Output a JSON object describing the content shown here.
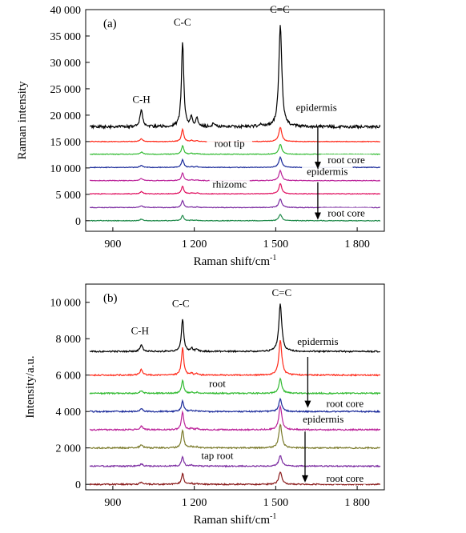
{
  "chart_data": [
    {
      "type": "line",
      "panel_label": "(a)",
      "xlabel": "Raman shift/cm",
      "xlabel_sup": "-1",
      "ylabel": "Raman intensity",
      "xlim": [
        800,
        1900
      ],
      "ylim": [
        -2000,
        40000
      ],
      "xticks": [
        900,
        1200,
        1500,
        1800
      ],
      "xtick_labels": [
        "900",
        "1 200",
        "1 500",
        "1 800"
      ],
      "yticks": [
        0,
        5000,
        10000,
        15000,
        20000,
        25000,
        30000,
        35000,
        40000
      ],
      "ytick_labels": [
        "0",
        "5 000",
        "10 000",
        "15 000",
        "20 000",
        "25 000",
        "30 000",
        "35 000",
        "40 000"
      ],
      "grid": false,
      "series": [
        {
          "color": "#000000",
          "baseline": 17800,
          "amps": {
            "ch": 3200,
            "cc": 16200,
            "cc2": 1800,
            "cc3": 1400,
            "cc4": 500,
            "c1445": 400,
            "cdc": 19400
          },
          "noise": 260
        },
        {
          "color": "#ff2a1a",
          "baseline": 15000,
          "amps": {
            "ch": 500,
            "cc": 2300,
            "cc2": 200,
            "cc3": 200,
            "cc4": 0,
            "c1445": 0,
            "cdc": 2700
          },
          "noise": 60
        },
        {
          "color": "#33bb33",
          "baseline": 12600,
          "amps": {
            "ch": 400,
            "cc": 1600,
            "cc2": 150,
            "cc3": 150,
            "cc4": 0,
            "c1445": 0,
            "cdc": 1900
          },
          "noise": 60
        },
        {
          "color": "#1a2a9a",
          "baseline": 10100,
          "amps": {
            "ch": 400,
            "cc": 1500,
            "cc2": 150,
            "cc3": 150,
            "cc4": 0,
            "c1445": 0,
            "cdc": 1900
          },
          "noise": 60
        },
        {
          "color": "#bb2299",
          "baseline": 7600,
          "amps": {
            "ch": 400,
            "cc": 1500,
            "cc2": 150,
            "cc3": 150,
            "cc4": 0,
            "c1445": 0,
            "cdc": 1900
          },
          "noise": 60
        },
        {
          "color": "#e01060",
          "baseline": 5100,
          "amps": {
            "ch": 400,
            "cc": 1500,
            "cc2": 150,
            "cc3": 150,
            "cc4": 0,
            "c1445": 0,
            "cdc": 1900
          },
          "noise": 60
        },
        {
          "color": "#7a2aa0",
          "baseline": 2500,
          "amps": {
            "ch": 350,
            "cc": 1300,
            "cc2": 120,
            "cc3": 120,
            "cc4": 0,
            "c1445": 0,
            "cdc": 1600
          },
          "noise": 60
        },
        {
          "color": "#1f8a4a",
          "baseline": 0,
          "amps": {
            "ch": 300,
            "cc": 1000,
            "cc2": 100,
            "cc3": 100,
            "cc4": 0,
            "c1445": 0,
            "cdc": 1200
          },
          "noise": 60
        }
      ],
      "annotations": [
        {
          "text": "C-H",
          "x": 1005,
          "y": 22300
        },
        {
          "text": "C-C",
          "x": 1156,
          "y": 37000
        },
        {
          "text": "C=C",
          "x": 1515,
          "y": 39400
        },
        {
          "text": "epidermis",
          "x": 1650,
          "y": 20800
        },
        {
          "text": "root tip",
          "x": 1330,
          "y": 14000
        },
        {
          "text": "root core",
          "x": 1760,
          "y": 10900
        },
        {
          "text": "epidermis",
          "x": 1690,
          "y": 8700
        },
        {
          "text": "rhizomc",
          "x": 1330,
          "y": 6300
        },
        {
          "text": "root core",
          "x": 1760,
          "y": 800
        }
      ],
      "arrows": [
        {
          "x": 1655,
          "y_from": 17700,
          "y_to": 9800
        },
        {
          "x": 1655,
          "y_from": 7300,
          "y_to": 200
        }
      ]
    },
    {
      "type": "line",
      "panel_label": "(b)",
      "xlabel": "Raman shift/cm",
      "xlabel_sup": "-1",
      "ylabel": "Intensity/a.u.",
      "xlim": [
        800,
        1900
      ],
      "ylim": [
        -300,
        11000
      ],
      "xticks": [
        900,
        1200,
        1500,
        1800
      ],
      "xtick_labels": [
        "900",
        "1 200",
        "1 500",
        "1 800"
      ],
      "yticks": [
        0,
        2000,
        4000,
        6000,
        8000,
        10000
      ],
      "ytick_labels": [
        "0",
        "2 000",
        "4 000",
        "6 000",
        "8 000",
        "10 000"
      ],
      "grid": false,
      "series": [
        {
          "color": "#000000",
          "baseline": 7300,
          "amps": {
            "ch": 350,
            "cc": 1800,
            "cc2": 180,
            "cc3": 120,
            "cc4": 0,
            "c1445": 0,
            "cdc": 2600
          },
          "noise": 40
        },
        {
          "color": "#ff2a1a",
          "baseline": 6000,
          "amps": {
            "ch": 300,
            "cc": 1500,
            "cc2": 100,
            "cc3": 80,
            "cc4": 0,
            "c1445": 0,
            "cdc": 1900
          },
          "noise": 35
        },
        {
          "color": "#33bb33",
          "baseline": 5000,
          "amps": {
            "ch": 150,
            "cc": 700,
            "cc2": 60,
            "cc3": 50,
            "cc4": 0,
            "c1445": 0,
            "cdc": 800
          },
          "noise": 35
        },
        {
          "color": "#1a2a9a",
          "baseline": 4000,
          "amps": {
            "ch": 150,
            "cc": 600,
            "cc2": 60,
            "cc3": 50,
            "cc4": 0,
            "c1445": 0,
            "cdc": 700
          },
          "noise": 35
        },
        {
          "color": "#bb2299",
          "baseline": 3000,
          "amps": {
            "ch": 200,
            "cc": 1000,
            "cc2": 80,
            "cc3": 60,
            "cc4": 0,
            "c1445": 0,
            "cdc": 1300
          },
          "noise": 35
        },
        {
          "color": "#7a7a2a",
          "baseline": 2000,
          "amps": {
            "ch": 200,
            "cc": 1000,
            "cc2": 80,
            "cc3": 60,
            "cc4": 0,
            "c1445": 0,
            "cdc": 1300
          },
          "noise": 35
        },
        {
          "color": "#7a2aa0",
          "baseline": 1000,
          "amps": {
            "ch": 120,
            "cc": 500,
            "cc2": 50,
            "cc3": 40,
            "cc4": 0,
            "c1445": 0,
            "cdc": 600
          },
          "noise": 35
        },
        {
          "color": "#8a1a1a",
          "baseline": 0,
          "amps": {
            "ch": 120,
            "cc": 600,
            "cc2": 50,
            "cc3": 40,
            "cc4": 0,
            "c1445": 0,
            "cdc": 700
          },
          "noise": 35
        }
      ],
      "annotations": [
        {
          "text": "C-H",
          "x": 1000,
          "y": 8250
        },
        {
          "text": "C-C",
          "x": 1150,
          "y": 9750
        },
        {
          "text": "C=C",
          "x": 1522,
          "y": 10350
        },
        {
          "text": "epidermis",
          "x": 1655,
          "y": 7650
        },
        {
          "text": "root",
          "x": 1285,
          "y": 5350
        },
        {
          "text": "root core",
          "x": 1755,
          "y": 4250
        },
        {
          "text": "epidermis",
          "x": 1675,
          "y": 3400
        },
        {
          "text": "tap root",
          "x": 1285,
          "y": 1400
        },
        {
          "text": "root core",
          "x": 1755,
          "y": 150
        }
      ],
      "arrows": [
        {
          "x": 1618,
          "y_from": 7000,
          "y_to": 4200
        },
        {
          "x": 1608,
          "y_from": 2900,
          "y_to": 100
        }
      ]
    }
  ]
}
